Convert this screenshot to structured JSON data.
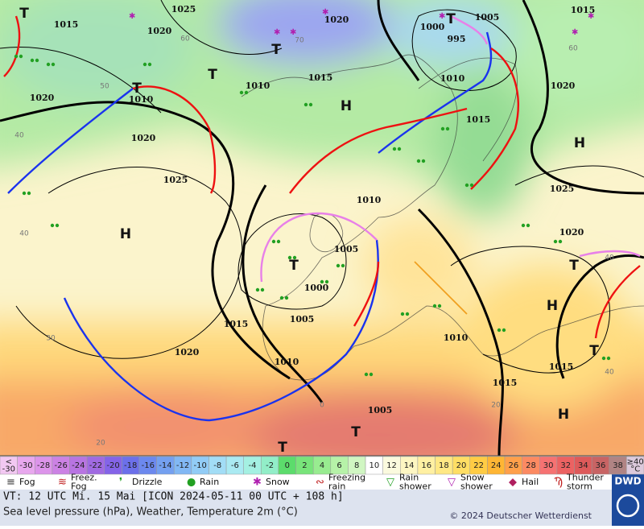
{
  "map": {
    "pressure_labels": [
      "1025",
      "1015",
      "1020",
      "1020",
      "1005",
      "1015",
      "1000",
      "995",
      "1010",
      "1015",
      "1010",
      "1010",
      "1020",
      "1020",
      "1015",
      "1020",
      "1025",
      "1025",
      "1010",
      "1020",
      "1005",
      "1000",
      "1005",
      "1015",
      "1010",
      "1020",
      "1010",
      "1015",
      "1015",
      "1005"
    ],
    "highs": [
      "H",
      "H",
      "H",
      "H",
      "H"
    ],
    "lows": [
      "T",
      "T",
      "T",
      "T",
      "T",
      "T",
      "T",
      "T",
      "T",
      "T"
    ],
    "temperature_labels": [
      "40",
      "50",
      "60",
      "70",
      "40",
      "40",
      "30",
      "20",
      "0",
      "20",
      "40",
      "60"
    ]
  },
  "colorbar": {
    "cells": [
      {
        "lines": [
          "<",
          "-30"
        ],
        "color": "#f2c8f2"
      },
      {
        "lines": [
          "-30"
        ],
        "color": "#e8a8ee"
      },
      {
        "lines": [
          "-28"
        ],
        "color": "#dc94ea"
      },
      {
        "lines": [
          "-26"
        ],
        "color": "#cc82e4"
      },
      {
        "lines": [
          "-24"
        ],
        "color": "#b874e2"
      },
      {
        "lines": [
          "-22"
        ],
        "color": "#a06ae2"
      },
      {
        "lines": [
          "-20"
        ],
        "color": "#8464e8"
      },
      {
        "lines": [
          "-18"
        ],
        "color": "#6c70ea"
      },
      {
        "lines": [
          "-16"
        ],
        "color": "#6c88ee"
      },
      {
        "lines": [
          "-14"
        ],
        "color": "#74a0f0"
      },
      {
        "lines": [
          "-12"
        ],
        "color": "#82b8f4"
      },
      {
        "lines": [
          "-10"
        ],
        "color": "#92ccf6"
      },
      {
        "lines": [
          "-8"
        ],
        "color": "#a2ddf6"
      },
      {
        "lines": [
          "-6"
        ],
        "color": "#aaeaf2"
      },
      {
        "lines": [
          "-4"
        ],
        "color": "#a4f0e2"
      },
      {
        "lines": [
          "-2"
        ],
        "color": "#92eec8"
      },
      {
        "lines": [
          "0"
        ],
        "color": "#5cdc6c"
      },
      {
        "lines": [
          "2"
        ],
        "color": "#78e47a"
      },
      {
        "lines": [
          "4"
        ],
        "color": "#98ec90"
      },
      {
        "lines": [
          "6"
        ],
        "color": "#b6f2a8"
      },
      {
        "lines": [
          "8"
        ],
        "color": "#d0f6c2"
      },
      {
        "lines": [
          "10"
        ],
        "color": "#ffffff"
      },
      {
        "lines": [
          "12"
        ],
        "color": "#fbfade"
      },
      {
        "lines": [
          "14"
        ],
        "color": "#fdf6c2"
      },
      {
        "lines": [
          "16"
        ],
        "color": "#fff0a2"
      },
      {
        "lines": [
          "18"
        ],
        "color": "#ffe884"
      },
      {
        "lines": [
          "20"
        ],
        "color": "#ffde64"
      },
      {
        "lines": [
          "22"
        ],
        "color": "#ffcc44"
      },
      {
        "lines": [
          "24"
        ],
        "color": "#ffb634"
      },
      {
        "lines": [
          "26"
        ],
        "color": "#ffa04a"
      },
      {
        "lines": [
          "28"
        ],
        "color": "#fc8a62"
      },
      {
        "lines": [
          "30"
        ],
        "color": "#f67272"
      },
      {
        "lines": [
          "32"
        ],
        "color": "#ec6262"
      },
      {
        "lines": [
          "34"
        ],
        "color": "#de5a5a"
      },
      {
        "lines": [
          "36"
        ],
        "color": "#c86464"
      },
      {
        "lines": [
          "38"
        ],
        "color": "#b08484"
      },
      {
        "lines": [
          "≥40",
          "°C"
        ],
        "color": "#dccadc"
      }
    ]
  },
  "legend": {
    "items": [
      {
        "lines": [
          "Fog"
        ]
      },
      {
        "lines": [
          "Freez.",
          "Fog"
        ]
      },
      {
        "lines": [
          "Drizzle"
        ]
      },
      {
        "lines": [
          "Rain"
        ]
      },
      {
        "lines": [
          "Snow"
        ]
      },
      {
        "lines": [
          "Freezing",
          "rain"
        ]
      },
      {
        "lines": [
          "Rain",
          "shower"
        ]
      },
      {
        "lines": [
          "Snow",
          "shower"
        ]
      },
      {
        "lines": [
          "Hail"
        ]
      },
      {
        "lines": [
          "Thunder",
          "storm"
        ]
      }
    ]
  },
  "footer": {
    "valid_time": "VT: 12 UTC Mi.  15 Mai [ICON 2024-05-11  00 UTC + 108 h]",
    "description": "Sea level pressure (hPa), Weather, Temperature 2m (°C)",
    "copyright": "© 2024 Deutscher Wetterdienst",
    "logo": "DWD"
  }
}
